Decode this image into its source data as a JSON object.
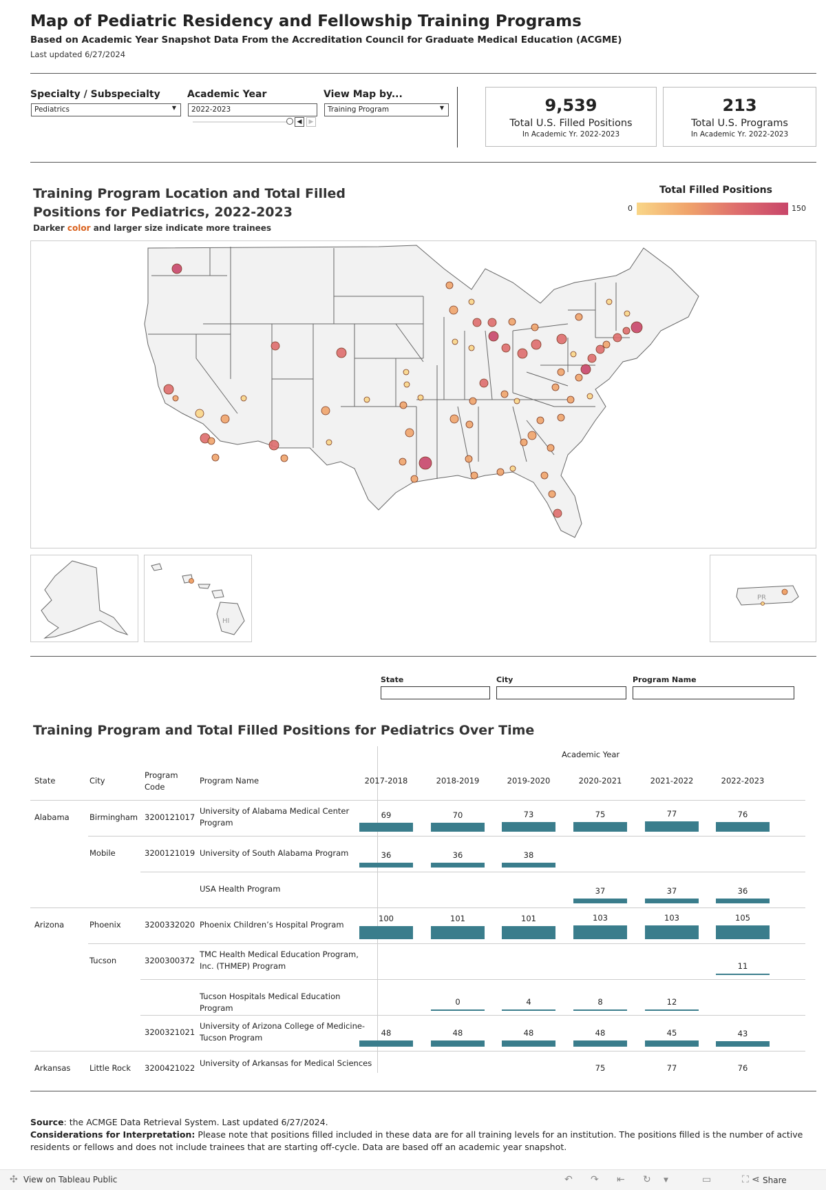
{
  "header": {
    "title": "Map of Pediatric Residency and Fellowship Training Programs",
    "subtitle": "Based on Academic Year Snapshot Data From the Accreditation Council for Graduate Medical Education (ACGME)",
    "updated": "Last updated 6/27/2024"
  },
  "filters": {
    "specialty_label": "Specialty / Subspecialty",
    "specialty_value": "Pediatrics",
    "year_label": "Academic Year",
    "year_value": "2022-2023",
    "view_label": "View Map by...",
    "view_value": "Training Program"
  },
  "kpis": [
    {
      "value": "9,539",
      "label": "Total U.S. Filled Positions",
      "sub": "In Academic Yr. 2022-2023"
    },
    {
      "value": "213",
      "label": "Total U.S. Programs",
      "sub": "In Academic Yr. 2022-2023"
    }
  ],
  "map": {
    "title": "Training Program Location and Total Filled Positions for Pediatrics, 2022-2023",
    "note_pre": "Darker ",
    "note_accent": "color",
    "note_post": " and larger size indicate more trainees",
    "legend_title": "Total Filled Positions",
    "legend_min": "0",
    "legend_max": "150",
    "inset_hi": "HI",
    "inset_pr": "PR",
    "colors": {
      "low": "#f9d688",
      "mid": "#f0a46b",
      "high": "#c8466a",
      "state_fill": "#f2f2f2",
      "state_stroke": "#666"
    }
  },
  "table_filters": {
    "state_label": "State",
    "city_label": "City",
    "program_label": "Program Name"
  },
  "table": {
    "title": "Training Program and Total Filled Positions for Pediatrics Over Time",
    "year_header": "Academic Year",
    "col_state": "State",
    "col_city": "City",
    "col_code": "Program Code",
    "col_name": "Program Name",
    "years": [
      "2017-2018",
      "2018-2019",
      "2019-2020",
      "2020-2021",
      "2021-2022",
      "2022-2023"
    ],
    "bar_color": "#3a7d8c",
    "rows": [
      {
        "state": "Alabama",
        "city": "Birmingham",
        "code": "3200121017",
        "name": "University of Alabama Medical Center Program",
        "values": [
          69,
          70,
          73,
          75,
          77,
          76
        ]
      },
      {
        "state": "",
        "city": "Mobile",
        "code": "3200121019",
        "name": "University of South Alabama Program",
        "values": [
          36,
          36,
          38,
          null,
          null,
          null
        ]
      },
      {
        "state": "",
        "city": "",
        "code": "",
        "name": "USA Health Program",
        "values": [
          null,
          null,
          null,
          37,
          37,
          36
        ]
      },
      {
        "state": "Arizona",
        "city": "Phoenix",
        "code": "3200332020",
        "name": "Phoenix Children’s Hospital Program",
        "values": [
          100,
          101,
          101,
          103,
          103,
          105
        ]
      },
      {
        "state": "",
        "city": "Tucson",
        "code": "3200300372",
        "name": "TMC Health Medical Education Program, Inc. (THMEP) Program",
        "values": [
          null,
          null,
          null,
          null,
          null,
          11
        ]
      },
      {
        "state": "",
        "city": "",
        "code": "",
        "name": "Tucson Hospitals Medical Education Program",
        "values": [
          null,
          0,
          4,
          8,
          12,
          null
        ]
      },
      {
        "state": "",
        "city": "",
        "code": "3200321021",
        "name": "University of Arizona College of Medicine-Tucson Program",
        "values": [
          48,
          48,
          48,
          48,
          45,
          43
        ]
      },
      {
        "state": "Arkansas",
        "city": "Little Rock",
        "code": "3200421022",
        "name": "University of Arkansas for Medical Sciences (UAMS) College of Medicine Program",
        "values": [
          null,
          null,
          null,
          75,
          77,
          76
        ]
      }
    ]
  },
  "source": {
    "source_label": "Source",
    "source_text": ": the ACMGE Data Retrieval System. Last updated 6/27/2024.",
    "consider_label": "Considerations for Interpretation:",
    "consider_text": "  Please note that positions filled included in these data are for all training levels for an institution.  The positions filled is the number of active residents or fellows and does not include trainees that are starting off-cycle.  Data are based off an academic year snapshot."
  },
  "footer": {
    "view_on": "View on Tableau Public",
    "share": "Share"
  }
}
